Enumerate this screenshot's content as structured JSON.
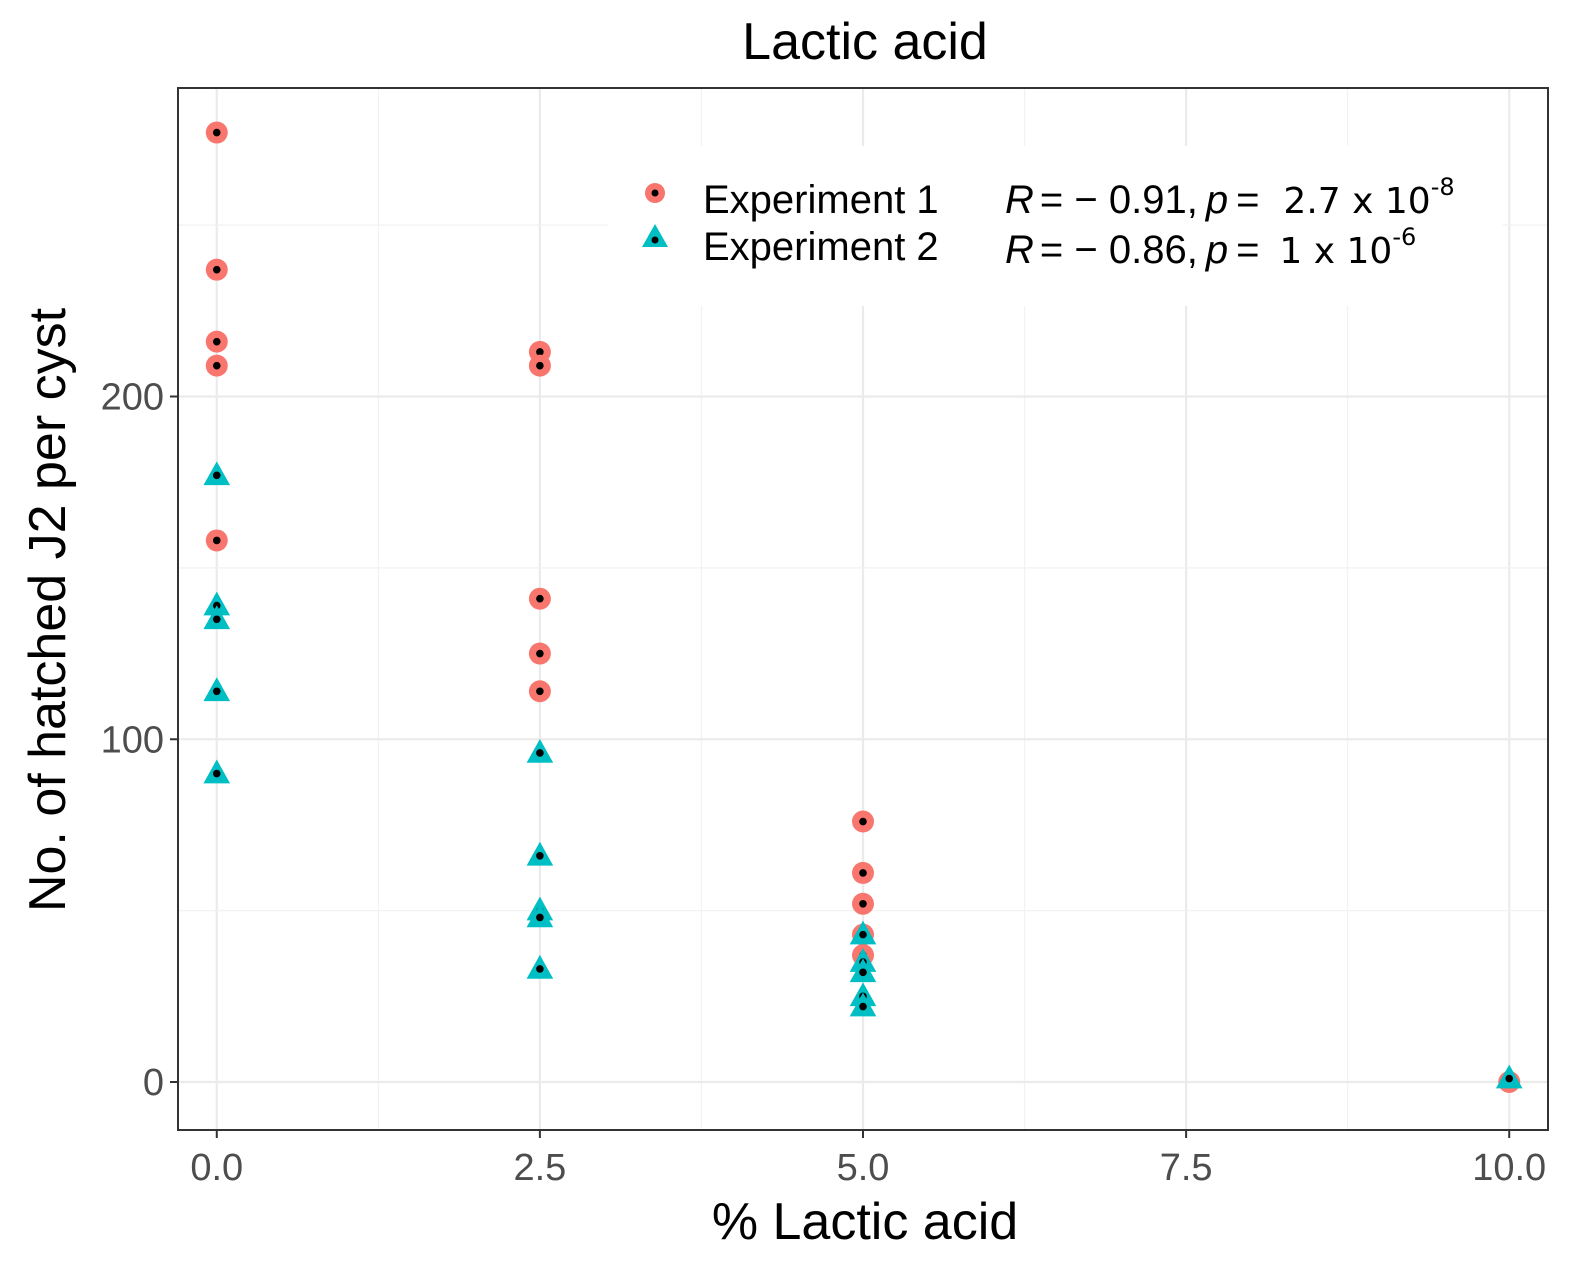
{
  "chart_data": {
    "type": "scatter",
    "title": "Lactic acid",
    "xlabel": "% Lactic acid",
    "ylabel": "No. of hatched J2 per cyst",
    "xlim": [
      -0.3,
      10.3
    ],
    "ylim": [
      -14,
      290
    ],
    "x_ticks": [
      0.0,
      2.5,
      5.0,
      7.5,
      10.0
    ],
    "x_tick_labels": [
      "0.0",
      "2.5",
      "5.0",
      "7.5",
      "10.0"
    ],
    "y_ticks": [
      0,
      100,
      200
    ],
    "y_tick_labels": [
      "0",
      "100",
      "200"
    ],
    "grid": true,
    "legend_position": "top-right",
    "series": [
      {
        "name": "Experiment 1",
        "marker": "circle",
        "color": "#F8766D",
        "stat": {
          "r_label": "R",
          "r_value": "= − 0.91,",
          "p_label": "p",
          "p_eq": "=",
          "p_value": "2.7 x 10",
          "p_exp": "-8"
        },
        "points": [
          [
            0,
            277
          ],
          [
            0,
            237
          ],
          [
            0,
            216
          ],
          [
            0,
            209
          ],
          [
            0,
            158
          ],
          [
            2.5,
            213
          ],
          [
            2.5,
            209
          ],
          [
            2.5,
            141
          ],
          [
            2.5,
            125
          ],
          [
            2.5,
            114
          ],
          [
            5,
            76
          ],
          [
            5,
            61
          ],
          [
            5,
            52
          ],
          [
            5,
            43
          ],
          [
            5,
            37
          ],
          [
            10,
            0
          ]
        ]
      },
      {
        "name": "Experiment 2",
        "marker": "triangle",
        "color": "#00BFC4",
        "stat": {
          "r_label": "R",
          "r_value": "= − 0.86,",
          "p_label": "p",
          "p_eq": "=",
          "p_value": "1 x 10",
          "p_exp": "-6"
        },
        "points": [
          [
            0,
            177
          ],
          [
            0,
            139
          ],
          [
            0,
            135
          ],
          [
            0,
            114
          ],
          [
            0,
            90
          ],
          [
            2.5,
            96
          ],
          [
            2.5,
            66
          ],
          [
            2.5,
            50
          ],
          [
            2.5,
            48
          ],
          [
            2.5,
            33
          ],
          [
            5,
            43
          ],
          [
            5,
            35
          ],
          [
            5,
            32
          ],
          [
            5,
            25
          ],
          [
            5,
            22
          ],
          [
            10,
            1
          ]
        ]
      }
    ]
  }
}
